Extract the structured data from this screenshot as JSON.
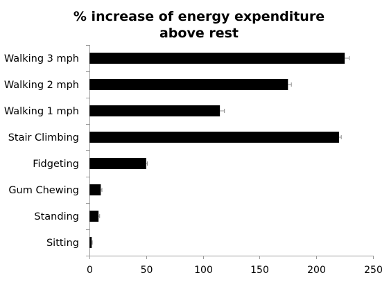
{
  "chart_data": {
    "type": "bar",
    "orientation": "horizontal",
    "title": "% increase of energy expenditure above rest",
    "title_lines": [
      "% increase of energy expenditure",
      "above rest"
    ],
    "categories": [
      "Walking 3 mph",
      "Walking 2 mph",
      "Walking 1 mph",
      "Stair Climbing",
      "Fidgeting",
      "Gum Chewing",
      "Standing",
      "Sitting"
    ],
    "values": [
      225,
      175,
      115,
      220,
      50,
      10,
      8,
      2
    ],
    "error": [
      4,
      3,
      4,
      2,
      1,
      1,
      1,
      0.5
    ],
    "xlim": [
      0,
      250
    ],
    "xticks": [
      0,
      50,
      100,
      150,
      200,
      250
    ],
    "xlabel": "",
    "ylabel": "",
    "grid": false,
    "legend": "none",
    "bar_color": "#000000",
    "errorbar_color": "#8c8c8c"
  }
}
